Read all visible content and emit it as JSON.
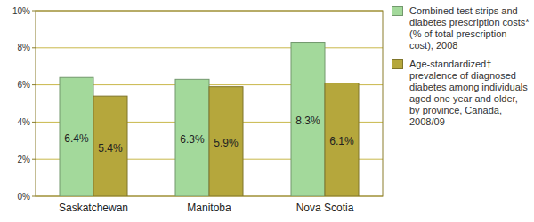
{
  "chart_data": {
    "type": "bar",
    "categories": [
      "Saskatchewan",
      "Manitoba",
      "Nova Scotia"
    ],
    "series": [
      {
        "name": "Combined test strips and diabetes prescription costs* (% of total prescription cost), 2008",
        "color": "#a3d99b",
        "values": [
          6.4,
          6.3,
          8.3
        ],
        "value_labels": [
          "6.4%",
          "6.3%",
          "8.3%"
        ]
      },
      {
        "name": "Age-standardized† prevalence of diagnosed diabetes among individuals aged one year and older, by province, Canada, 2008/09",
        "color": "#b5a73c",
        "values": [
          5.4,
          5.9,
          6.1
        ],
        "value_labels": [
          "5.4%",
          "5.9%",
          "6.1%"
        ]
      }
    ],
    "ylim": [
      0,
      10
    ],
    "yticks": [
      {
        "value": 0,
        "label": "0%"
      },
      {
        "value": 2,
        "label": "2%"
      },
      {
        "value": 4,
        "label": "4%"
      },
      {
        "value": 6,
        "label": "6%"
      },
      {
        "value": 8,
        "label": "8%"
      },
      {
        "value": 10,
        "label": "10%"
      }
    ],
    "grid": true,
    "data_labels": true,
    "legend": "right"
  }
}
